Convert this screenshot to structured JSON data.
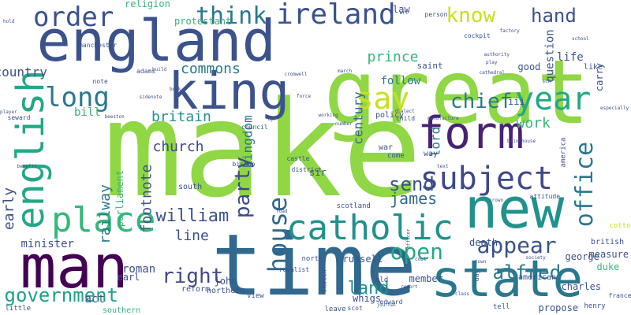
{
  "cloud": {
    "background": "#ffffff",
    "words": [
      {
        "text": "make",
        "color": "#8fd744",
        "weight": 1.0
      },
      {
        "text": "great",
        "color": "#8fd744",
        "weight": 0.85
      },
      {
        "text": "time",
        "color": "#31688e",
        "weight": 0.78
      },
      {
        "text": "england",
        "color": "#3b528b",
        "weight": 0.55
      },
      {
        "text": "man",
        "color": "#440154",
        "weight": 0.52
      },
      {
        "text": "state",
        "color": "#2a788e",
        "weight": 0.5
      },
      {
        "text": "new",
        "color": "#21918c",
        "weight": 0.5
      },
      {
        "text": "form",
        "color": "#482173",
        "weight": 0.45
      },
      {
        "text": "king",
        "color": "#3b528b",
        "weight": 0.42
      },
      {
        "text": "english",
        "color": "#22a884",
        "weight": 0.32
      },
      {
        "text": "catholic",
        "color": "#21918c",
        "weight": 0.3
      },
      {
        "text": "place",
        "color": "#35b779",
        "weight": 0.3
      },
      {
        "text": "subject",
        "color": "#3e4989",
        "weight": 0.3
      },
      {
        "text": "ireland",
        "color": "#3b528b",
        "weight": 0.27
      },
      {
        "text": "government",
        "color": "#1fa187",
        "weight": 0.22
      },
      {
        "text": "order",
        "color": "#3b528b",
        "weight": 0.22
      },
      {
        "text": "long",
        "color": "#2a788e",
        "weight": 0.24
      },
      {
        "text": "think",
        "color": "#2a788e",
        "weight": 0.22
      },
      {
        "text": "house",
        "color": "#31688e",
        "weight": 0.21
      },
      {
        "text": "year",
        "color": "#22a884",
        "weight": 0.24
      },
      {
        "text": "say",
        "color": "#c8e020",
        "weight": 0.24
      },
      {
        "text": "office",
        "color": "#2a788e",
        "weight": 0.22
      },
      {
        "text": "party",
        "color": "#3e4989",
        "weight": 0.2
      },
      {
        "text": "open",
        "color": "#22a884",
        "weight": 0.2
      },
      {
        "text": "appear",
        "color": "#3b528b",
        "weight": 0.2
      },
      {
        "text": "chief",
        "color": "#2a788e",
        "weight": 0.17
      },
      {
        "text": "know",
        "color": "#c8e020",
        "weight": 0.17
      },
      {
        "text": "hand",
        "color": "#3b528b",
        "weight": 0.17
      },
      {
        "text": "right",
        "color": "#3e4989",
        "weight": 0.16
      },
      {
        "text": "alfred",
        "color": "#2a788e",
        "weight": 0.16
      },
      {
        "text": "william",
        "color": "#3b528b",
        "weight": 0.14
      },
      {
        "text": "early",
        "color": "#3b528b",
        "weight": 0.13
      },
      {
        "text": "send",
        "color": "#3b528b",
        "weight": 0.14
      },
      {
        "text": "james",
        "color": "#31688e",
        "weight": 0.13
      },
      {
        "text": "land",
        "color": "#21918c",
        "weight": 0.14
      },
      {
        "text": "commons",
        "color": "#2a788e",
        "weight": 0.13
      },
      {
        "text": "britain",
        "color": "#21918c",
        "weight": 0.13
      },
      {
        "text": "footnote",
        "color": "#3b528b",
        "weight": 0.13
      },
      {
        "text": "railway",
        "color": "#2a788e",
        "weight": 0.12
      },
      {
        "text": "line",
        "color": "#3b528b",
        "weight": 0.12
      },
      {
        "text": "church",
        "color": "#3e4989",
        "weight": 0.11
      },
      {
        "text": "work",
        "color": "#35b779",
        "weight": 0.12
      },
      {
        "text": "lord",
        "color": "#2a788e",
        "weight": 0.12
      },
      {
        "text": "kingdom",
        "color": "#2a788e",
        "weight": 0.1
      },
      {
        "text": "century",
        "color": "#31688e",
        "weight": 0.1
      },
      {
        "text": "follow",
        "color": "#2a788e",
        "weight": 0.1
      },
      {
        "text": "prince",
        "color": "#35b779",
        "weight": 0.1
      },
      {
        "text": "bill",
        "color": "#35b779",
        "weight": 0.11
      },
      {
        "text": "country",
        "color": "#3b528b",
        "weight": 0.09
      },
      {
        "text": "act",
        "color": "#3b528b",
        "weight": 0.1
      },
      {
        "text": "roman",
        "color": "#3b528b",
        "weight": 0.09
      },
      {
        "text": "whigs",
        "color": "#3b528b",
        "weight": 0.09
      },
      {
        "text": "minister",
        "color": "#3b528b",
        "weight": 0.08
      },
      {
        "text": "parliament",
        "color": "#35b779",
        "weight": 0.08
      },
      {
        "text": "religion",
        "color": "#35b779",
        "weight": 0.07
      },
      {
        "text": "protestant",
        "color": "#35b779",
        "weight": 0.07
      },
      {
        "text": "saint",
        "color": "#3b528b",
        "weight": 0.07
      },
      {
        "text": "question",
        "color": "#3b528b",
        "weight": 0.07
      },
      {
        "text": "life",
        "color": "#3b528b",
        "weight": 0.07
      },
      {
        "text": "carry",
        "color": "#3b528b",
        "weight": 0.07
      },
      {
        "text": "charles",
        "color": "#3b528b",
        "weight": 0.06
      },
      {
        "text": "death",
        "color": "#3b528b",
        "weight": 0.06
      },
      {
        "text": "duke",
        "color": "#35b779",
        "weight": 0.06
      },
      {
        "text": "measure",
        "color": "#3b528b",
        "weight": 0.06
      },
      {
        "text": "george",
        "color": "#3b528b",
        "weight": 0.06
      },
      {
        "text": "propose",
        "color": "#3b528b",
        "weight": 0.06
      },
      {
        "text": "member",
        "color": "#3b528b",
        "weight": 0.05
      },
      {
        "text": "russell",
        "color": "#3b528b",
        "weight": 0.05
      },
      {
        "text": "policy",
        "color": "#3b528b",
        "weight": 0.04
      },
      {
        "text": "sir",
        "color": "#3b528b",
        "weight": 0.05
      },
      {
        "text": "john",
        "color": "#3b528b",
        "weight": 0.05
      },
      {
        "text": "earl",
        "color": "#3b528b",
        "weight": 0.05
      },
      {
        "text": "law",
        "color": "#3b528b",
        "weight": 0.05
      },
      {
        "text": "good",
        "color": "#3b528b",
        "weight": 0.05
      },
      {
        "text": "iii",
        "color": "#3b528b",
        "weight": 0.05
      },
      {
        "text": "way",
        "color": "#3b528b",
        "weight": 0.05
      },
      {
        "text": "war",
        "color": "#3b528b",
        "weight": 0.05
      },
      {
        "text": "come",
        "color": "#3b528b",
        "weight": 0.04
      },
      {
        "text": "north",
        "color": "#3b528b",
        "weight": 0.04
      },
      {
        "text": "northern",
        "color": "#3b528b",
        "weight": 0.04
      },
      {
        "text": "south",
        "color": "#3b528b",
        "weight": 0.04
      },
      {
        "text": "southern",
        "color": "#35b779",
        "weight": 0.04
      },
      {
        "text": "scotland",
        "color": "#3b528b",
        "weight": 0.03
      },
      {
        "text": "british",
        "color": "#3b528b",
        "weight": 0.04
      },
      {
        "text": "american",
        "color": "#3b528b",
        "weight": 0.04
      },
      {
        "text": "america",
        "color": "#3b528b",
        "weight": 0.03
      },
      {
        "text": "henry",
        "color": "#3b528b",
        "weight": 0.03
      },
      {
        "text": "like",
        "color": "#3b528b",
        "weight": 0.04
      },
      {
        "text": "cotton",
        "color": "#c8e020",
        "weight": 0.04
      },
      {
        "text": "little",
        "color": "#3b528b",
        "weight": 0.04
      },
      {
        "text": "reform",
        "color": "#3b528b",
        "weight": 0.04
      },
      {
        "text": "view",
        "color": "#3b528b",
        "weight": 0.04
      },
      {
        "text": "leave",
        "color": "#3b528b",
        "weight": 0.04
      },
      {
        "text": "old",
        "color": "#3b528b",
        "weight": 0.04
      },
      {
        "text": "tell",
        "color": "#3b528b",
        "weight": 0.04
      },
      {
        "text": "france",
        "color": "#3b528b",
        "weight": 0.03
      },
      {
        "text": "note",
        "color": "#3b528b",
        "weight": 0.04
      },
      {
        "text": "adams",
        "color": "#3b528b",
        "weight": 0.04
      },
      {
        "text": "castle",
        "color": "#3b528b",
        "weight": 0.03
      },
      {
        "text": "seward",
        "color": "#3b528b",
        "weight": 0.03
      },
      {
        "text": "council",
        "color": "#3b528b",
        "weight": 0.03
      },
      {
        "text": "bishop",
        "color": "#3b528b",
        "weight": 0.03
      },
      {
        "text": "attitude",
        "color": "#3b528b",
        "weight": 0.03
      },
      {
        "text": "sketch",
        "color": "#3b528b",
        "weight": 0.03
      },
      {
        "text": "day",
        "color": "#3b528b",
        "weight": 0.03
      },
      {
        "text": "person",
        "color": "#3b528b",
        "weight": 0.03
      },
      {
        "text": "child",
        "color": "#3b528b",
        "weight": 0.03
      },
      {
        "text": "edward",
        "color": "#3b528b",
        "weight": 0.03
      },
      {
        "text": "scot",
        "color": "#3b528b",
        "weight": 0.03
      },
      {
        "text": "district",
        "color": "#3b528b",
        "weight": 0.03
      },
      {
        "text": "royalist",
        "color": "#3b528b",
        "weight": 0.03
      },
      {
        "text": "cockpit",
        "color": "#3b528b",
        "weight": 0.02
      },
      {
        "text": "manchester",
        "color": "#3b528b",
        "weight": 0.02
      },
      {
        "text": "factory",
        "color": "#3b528b",
        "weight": 0.02
      },
      {
        "text": "play",
        "color": "#3b528b",
        "weight": 0.02
      },
      {
        "text": "school",
        "color": "#3b528b",
        "weight": 0.02
      },
      {
        "text": "sidenote",
        "color": "#3b528b",
        "weight": 0.02
      },
      {
        "text": "force",
        "color": "#3b528b",
        "weight": 0.02
      },
      {
        "text": "text",
        "color": "#3b528b",
        "weight": 0.02
      },
      {
        "text": "crown",
        "color": "#3b528b",
        "weight": 0.02
      },
      {
        "text": "officer",
        "color": "#3b528b",
        "weight": 0.02
      },
      {
        "text": "report",
        "color": "#3b528b",
        "weight": 0.02
      },
      {
        "text": "journal",
        "color": "#3b528b",
        "weight": 0.02
      },
      {
        "text": "society",
        "color": "#3b528b",
        "weight": 0.02
      },
      {
        "text": "class",
        "color": "#3b528b",
        "weight": 0.02
      },
      {
        "text": "dialect",
        "color": "#3b528b",
        "weight": 0.02
      },
      {
        "text": "working",
        "color": "#3b528b",
        "weight": 0.02
      },
      {
        "text": "march",
        "color": "#3b528b",
        "weight": 0.02
      },
      {
        "text": "build",
        "color": "#3b528b",
        "weight": 0.02
      },
      {
        "text": "book",
        "color": "#3b528b",
        "weight": 0.02
      },
      {
        "text": "hold",
        "color": "#3b528b",
        "weight": 0.02
      },
      {
        "text": "player",
        "color": "#3b528b",
        "weight": 0.02
      },
      {
        "text": "benefit",
        "color": "#3b528b",
        "weight": 0.02
      },
      {
        "text": "road",
        "color": "#3b528b",
        "weight": 0.02
      },
      {
        "text": "cool",
        "color": "#3b528b",
        "weight": 0.02
      },
      {
        "text": "sch",
        "color": "#3b528b",
        "weight": 0.02
      },
      {
        "text": "town",
        "color": "#3b528b",
        "weight": 0.02
      },
      {
        "text": "art",
        "color": "#3b528b",
        "weight": 0.02
      },
      {
        "text": "cathedral",
        "color": "#3b528b",
        "weight": 0.02
      },
      {
        "text": "number",
        "color": "#3b528b",
        "weight": 0.02
      },
      {
        "text": "manufacture",
        "color": "#3b528b",
        "weight": 0.02
      },
      {
        "text": "cromwell",
        "color": "#3b528b",
        "weight": 0.02
      },
      {
        "text": "authority",
        "color": "#3b528b",
        "weight": 0.02
      },
      {
        "text": "blindhouse",
        "color": "#3b528b",
        "weight": 0.02
      },
      {
        "text": "beeston",
        "color": "#3b528b",
        "weight": 0.02
      },
      {
        "text": "especially",
        "color": "#3b528b",
        "weight": 0.02
      },
      {
        "text": "ayr",
        "color": "#3b528b",
        "weight": 0.02
      },
      {
        "text": "amt",
        "color": "#3b528b",
        "weight": 0.02
      }
    ]
  }
}
